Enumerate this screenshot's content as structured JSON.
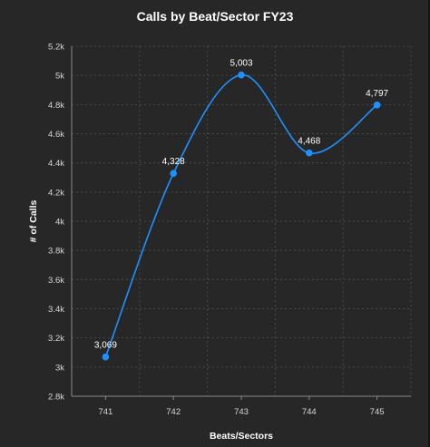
{
  "chart_data": {
    "type": "line",
    "title": "Calls by Beat/Sector FY23",
    "xlabel": "Beats/Sectors",
    "ylabel": "# of Calls",
    "categories": [
      "741",
      "742",
      "743",
      "744",
      "745"
    ],
    "values": [
      3069,
      4328,
      5003,
      4468,
      4797
    ],
    "data_labels": [
      "3,069",
      "4,328",
      "5,003",
      "4,468",
      "4,797"
    ],
    "ylim": [
      2800,
      5200
    ],
    "yticks": [
      2800,
      3000,
      3200,
      3400,
      3600,
      3800,
      4000,
      4200,
      4400,
      4600,
      4800,
      5000,
      5200
    ],
    "ytick_labels": [
      "2.8k",
      "3k",
      "3.2k",
      "3.4k",
      "3.6k",
      "3.8k",
      "4k",
      "4.2k",
      "4.4k",
      "4.6k",
      "4.8k",
      "5k",
      "5.2k"
    ],
    "grid": true,
    "line_color": "#1e90ff",
    "background_color": "#272727"
  }
}
